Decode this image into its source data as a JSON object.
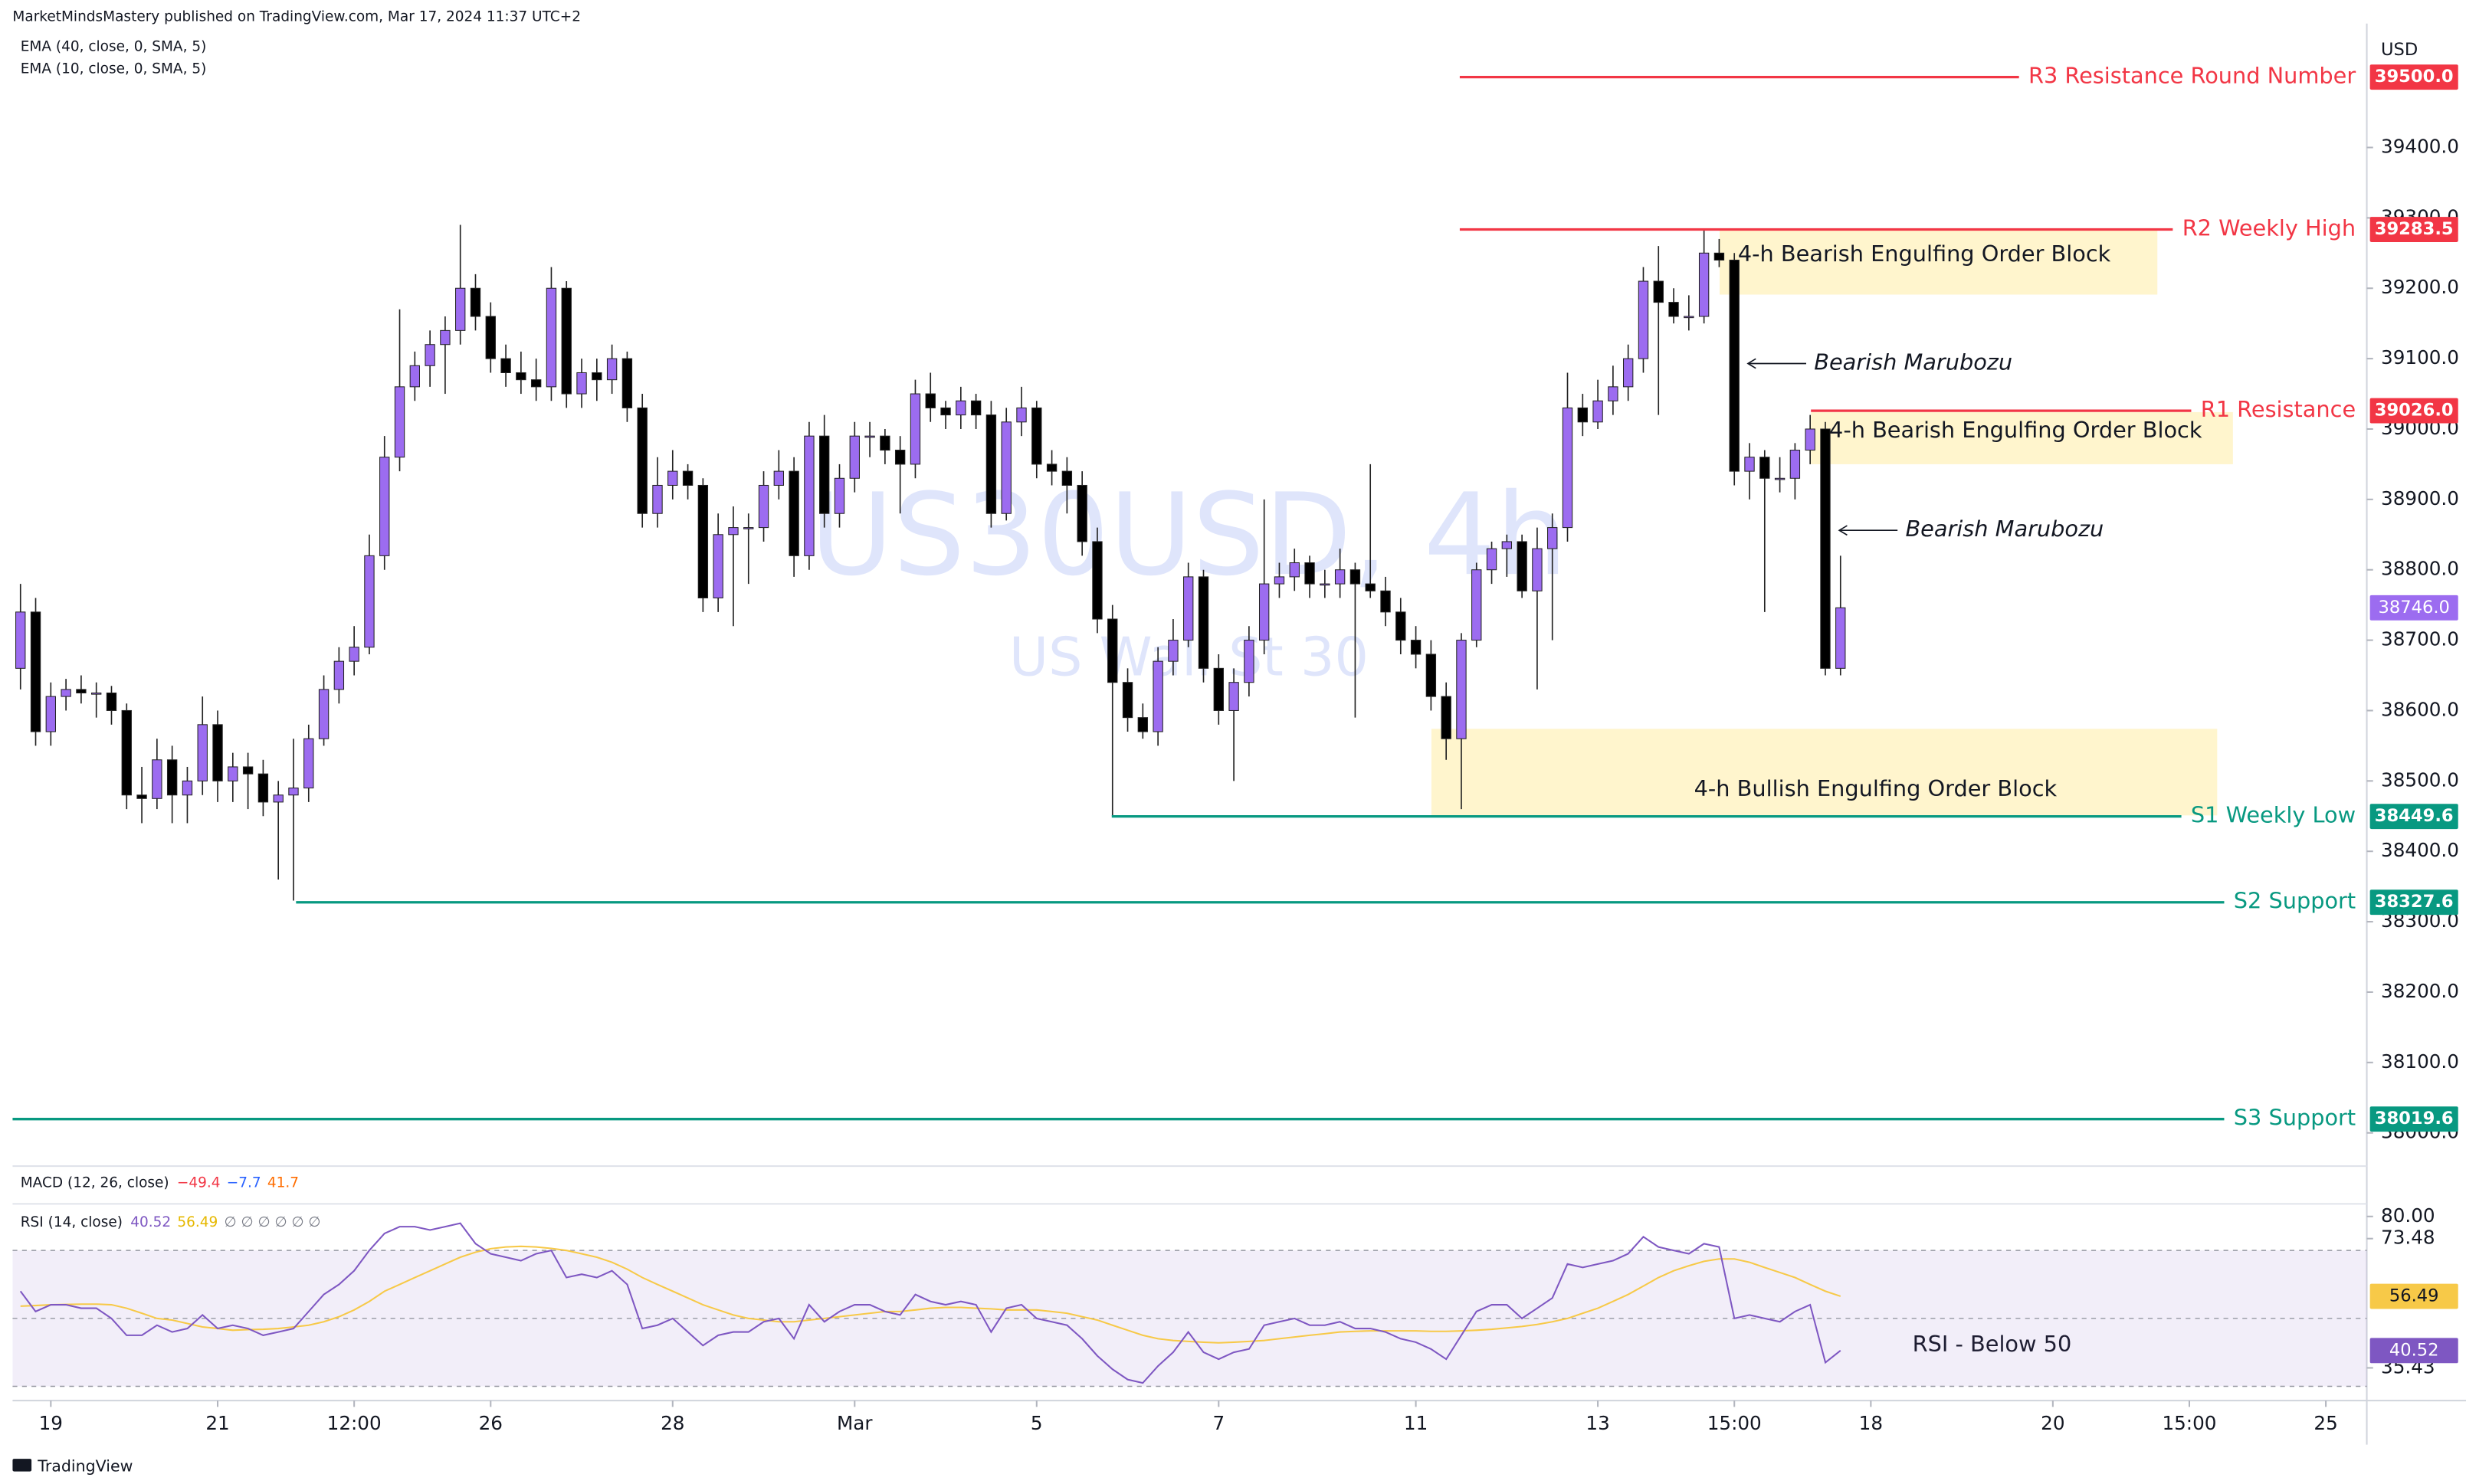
{
  "header": {
    "publisher": "MarketMindsMastery published on TradingView.com, Mar 17, 2024 11:37 UTC+2",
    "indicators": [
      "EMA (40, close, 0, SMA, 5)",
      "EMA (10, close, 0, SMA, 5)"
    ],
    "currency": "USD",
    "footer": "TradingView"
  },
  "macd": {
    "title": "MACD (12, 26, close)",
    "values": [
      {
        "label": "−49.4",
        "color": "#f23645"
      },
      {
        "label": "−7.7",
        "color": "#2962ff"
      },
      {
        "label": "41.7",
        "color": "#ff6d00"
      }
    ]
  },
  "chart_data": [
    {
      "type": "candlestick",
      "title": "US30USD, 4h",
      "subtitle": "US Wall St 30",
      "colors": {
        "up": "#9c6cf0",
        "down": "#000000"
      },
      "grid": false,
      "xlim": [
        -0.52,
        154.7
      ],
      "ylim": [
        37955,
        39576
      ],
      "xticks": [
        {
          "value": 2,
          "label": "19"
        },
        {
          "value": 13,
          "label": "21"
        },
        {
          "value": 22,
          "label": "12:00"
        },
        {
          "value": 31,
          "label": "26"
        },
        {
          "value": 43,
          "label": "28"
        },
        {
          "value": 55,
          "label": "Mar"
        },
        {
          "value": 67,
          "label": "5"
        },
        {
          "value": 79,
          "label": "7"
        },
        {
          "value": 92,
          "label": "11"
        },
        {
          "value": 104,
          "label": "13"
        },
        {
          "value": 113,
          "label": "15:00"
        },
        {
          "value": 122,
          "label": "18"
        },
        {
          "value": 134,
          "label": "20"
        },
        {
          "value": 143,
          "label": "15:00"
        },
        {
          "value": 152,
          "label": "25"
        }
      ],
      "yticks": [
        {
          "value": 38000,
          "label": "38000.0"
        },
        {
          "value": 38100,
          "label": "38100.0"
        },
        {
          "value": 38200,
          "label": "38200.0"
        },
        {
          "value": 38300,
          "label": "38300.0"
        },
        {
          "value": 38400,
          "label": "38400.0"
        },
        {
          "value": 38500,
          "label": "38500.0"
        },
        {
          "value": 38600,
          "label": "38600.0"
        },
        {
          "value": 38700,
          "label": "38700.0"
        },
        {
          "value": 38800,
          "label": "38800.0"
        },
        {
          "value": 38900,
          "label": "38900.0"
        },
        {
          "value": 39000,
          "label": "39000.0"
        },
        {
          "value": 39100,
          "label": "39100.0"
        },
        {
          "value": 39200,
          "label": "39200.0"
        },
        {
          "value": 39300,
          "label": "39300.0"
        },
        {
          "value": 39400,
          "label": "39400.0"
        }
      ],
      "ohlc": [
        [
          38660,
          38780,
          38630,
          38740
        ],
        [
          38740,
          38760,
          38550,
          38570
        ],
        [
          38570,
          38640,
          38550,
          38620
        ],
        [
          38620,
          38645,
          38600,
          38630
        ],
        [
          38630,
          38650,
          38610,
          38625
        ],
        [
          38625,
          38640,
          38590,
          38625
        ],
        [
          38625,
          38635,
          38580,
          38600
        ],
        [
          38600,
          38610,
          38460,
          38480
        ],
        [
          38480,
          38520,
          38440,
          38475
        ],
        [
          38475,
          38560,
          38460,
          38530
        ],
        [
          38530,
          38550,
          38440,
          38480
        ],
        [
          38480,
          38520,
          38440,
          38500
        ],
        [
          38500,
          38620,
          38480,
          38580
        ],
        [
          38580,
          38600,
          38470,
          38500
        ],
        [
          38500,
          38540,
          38470,
          38520
        ],
        [
          38520,
          38540,
          38460,
          38510
        ],
        [
          38510,
          38530,
          38450,
          38470
        ],
        [
          38470,
          38500,
          38360,
          38480
        ],
        [
          38480,
          38560,
          38330,
          38490
        ],
        [
          38490,
          38580,
          38470,
          38560
        ],
        [
          38560,
          38650,
          38550,
          38630
        ],
        [
          38630,
          38690,
          38610,
          38670
        ],
        [
          38670,
          38720,
          38650,
          38690
        ],
        [
          38690,
          38850,
          38680,
          38820
        ],
        [
          38820,
          38990,
          38800,
          38960
        ],
        [
          38960,
          39170,
          38940,
          39060
        ],
        [
          39060,
          39110,
          39040,
          39090
        ],
        [
          39090,
          39140,
          39060,
          39120
        ],
        [
          39120,
          39160,
          39050,
          39140
        ],
        [
          39140,
          39290,
          39120,
          39200
        ],
        [
          39200,
          39220,
          39140,
          39160
        ],
        [
          39160,
          39180,
          39080,
          39100
        ],
        [
          39100,
          39120,
          39060,
          39080
        ],
        [
          39080,
          39110,
          39050,
          39070
        ],
        [
          39070,
          39100,
          39040,
          39060
        ],
        [
          39060,
          39230,
          39040,
          39200
        ],
        [
          39200,
          39210,
          39030,
          39050
        ],
        [
          39050,
          39100,
          39030,
          39080
        ],
        [
          39080,
          39100,
          39040,
          39070
        ],
        [
          39070,
          39120,
          39050,
          39100
        ],
        [
          39100,
          39110,
          39010,
          39030
        ],
        [
          39030,
          39050,
          38860,
          38880
        ],
        [
          38880,
          38960,
          38860,
          38920
        ],
        [
          38920,
          38970,
          38900,
          38940
        ],
        [
          38940,
          38950,
          38900,
          38920
        ],
        [
          38920,
          38930,
          38740,
          38760
        ],
        [
          38760,
          38880,
          38740,
          38850
        ],
        [
          38850,
          38890,
          38720,
          38860
        ],
        [
          38860,
          38880,
          38780,
          38860
        ],
        [
          38860,
          38940,
          38840,
          38920
        ],
        [
          38920,
          38970,
          38900,
          38940
        ],
        [
          38940,
          38960,
          38790,
          38820
        ],
        [
          38820,
          39010,
          38800,
          38990
        ],
        [
          38990,
          39020,
          38860,
          38880
        ],
        [
          38880,
          38950,
          38860,
          38930
        ],
        [
          38930,
          39010,
          38910,
          38990
        ],
        [
          38990,
          39010,
          38960,
          38990
        ],
        [
          38990,
          39000,
          38950,
          38970
        ],
        [
          38970,
          38990,
          38880,
          38950
        ],
        [
          38950,
          39070,
          38930,
          39050
        ],
        [
          39050,
          39080,
          39010,
          39030
        ],
        [
          39030,
          39040,
          39000,
          39020
        ],
        [
          39020,
          39060,
          39000,
          39040
        ],
        [
          39040,
          39050,
          39000,
          39020
        ],
        [
          39020,
          39040,
          38860,
          38880
        ],
        [
          38880,
          39030,
          38870,
          39010
        ],
        [
          39010,
          39060,
          38990,
          39030
        ],
        [
          39030,
          39040,
          38930,
          38950
        ],
        [
          38950,
          38970,
          38920,
          38940
        ],
        [
          38940,
          38960,
          38880,
          38920
        ],
        [
          38920,
          38940,
          38820,
          38840
        ],
        [
          38840,
          38860,
          38710,
          38730
        ],
        [
          38730,
          38750,
          38450,
          38640
        ],
        [
          38640,
          38660,
          38570,
          38590
        ],
        [
          38590,
          38610,
          38560,
          38570
        ],
        [
          38570,
          38690,
          38550,
          38670
        ],
        [
          38670,
          38730,
          38650,
          38700
        ],
        [
          38700,
          38810,
          38690,
          38790
        ],
        [
          38790,
          38800,
          38640,
          38660
        ],
        [
          38660,
          38680,
          38580,
          38600
        ],
        [
          38600,
          38660,
          38500,
          38640
        ],
        [
          38640,
          38720,
          38620,
          38700
        ],
        [
          38700,
          38900,
          38680,
          38780
        ],
        [
          38780,
          38810,
          38760,
          38790
        ],
        [
          38790,
          38830,
          38770,
          38810
        ],
        [
          38810,
          38820,
          38760,
          38780
        ],
        [
          38780,
          38800,
          38760,
          38780
        ],
        [
          38780,
          38830,
          38760,
          38800
        ],
        [
          38800,
          38810,
          38590,
          38780
        ],
        [
          38780,
          38950,
          38760,
          38770
        ],
        [
          38770,
          38790,
          38720,
          38740
        ],
        [
          38740,
          38760,
          38680,
          38700
        ],
        [
          38700,
          38720,
          38660,
          38680
        ],
        [
          38680,
          38700,
          38600,
          38620
        ],
        [
          38620,
          38640,
          38530,
          38560
        ],
        [
          38560,
          38710,
          38460,
          38700
        ],
        [
          38700,
          38810,
          38690,
          38800
        ],
        [
          38800,
          38840,
          38780,
          38830
        ],
        [
          38830,
          38850,
          38790,
          38840
        ],
        [
          38840,
          38850,
          38760,
          38770
        ],
        [
          38770,
          38860,
          38630,
          38830
        ],
        [
          38830,
          38880,
          38700,
          38860
        ],
        [
          38860,
          39080,
          38840,
          39030
        ],
        [
          39030,
          39050,
          38990,
          39010
        ],
        [
          39010,
          39070,
          39000,
          39040
        ],
        [
          39040,
          39090,
          39020,
          39060
        ],
        [
          39060,
          39120,
          39040,
          39100
        ],
        [
          39100,
          39230,
          39080,
          39210
        ],
        [
          39210,
          39260,
          39020,
          39180
        ],
        [
          39180,
          39200,
          39150,
          39160
        ],
        [
          39160,
          39190,
          39140,
          39160
        ],
        [
          39160,
          39283,
          39150,
          39250
        ],
        [
          39250,
          39270,
          39230,
          39240
        ],
        [
          39240,
          39250,
          38920,
          38940
        ],
        [
          38940,
          38980,
          38900,
          38960
        ],
        [
          38960,
          38970,
          38740,
          38930
        ],
        [
          38930,
          38960,
          38910,
          38930
        ],
        [
          38930,
          38980,
          38900,
          38970
        ],
        [
          38970,
          39020,
          38950,
          39000
        ],
        [
          39000,
          39010,
          38650,
          38660
        ],
        [
          38660,
          38820,
          38650,
          38746
        ]
      ],
      "last_price_label": "38746.0",
      "levels": [
        {
          "name": "R3 Resistance Round Number",
          "value": 39500,
          "label": "39500.0",
          "color": "#f23645"
        },
        {
          "name": "R2 Weekly High",
          "value": 39283.5,
          "label": "39283.5",
          "color": "#f23645"
        },
        {
          "name": "R1 Resistance",
          "value": 39026,
          "label": "39026.0",
          "color": "#f23645"
        },
        {
          "name": "S1 Weekly Low",
          "value": 38449.6,
          "label": "38449.6",
          "color": "#089981"
        },
        {
          "name": "S2 Support",
          "value": 38327.6,
          "label": "38327.6",
          "color": "#089981"
        },
        {
          "name": "S3 Support",
          "value": 38019.6,
          "label": "38019.6",
          "color": "#089981"
        }
      ],
      "zones": [
        {
          "label": "4-h Bearish Engulfing Order Block",
          "top": 39283,
          "bottom": 39191
        },
        {
          "label": "4-h Bearish Engulfing Order Block",
          "top": 39024,
          "bottom": 38950
        },
        {
          "label": "4-h Bullish Engulfing Order Block",
          "top": 38574,
          "bottom": 38451
        }
      ],
      "annotations": [
        "Bearish Marubozu",
        "Bearish Marubozu"
      ]
    },
    {
      "type": "line",
      "title": "RSI (14, close)",
      "legend_extra": "∅ ∅ ∅ ∅ ∅ ∅",
      "annotation": "RSI - Below 50",
      "ylim": [
        25.8,
        83.7
      ],
      "bands": [
        70,
        50,
        30
      ],
      "band_color": "#7e57c2",
      "yticks": [
        {
          "value": 80,
          "label": "80.00"
        },
        {
          "value": 73.48,
          "label": "73.48"
        },
        {
          "value": 35.43,
          "label": "35.43"
        }
      ],
      "series": [
        {
          "color": "#7e57c2",
          "last_label": "40.52",
          "values": [
            58,
            52,
            54,
            54,
            53,
            53,
            50,
            45,
            45,
            48,
            46,
            47,
            51,
            47,
            48,
            47,
            45,
            46,
            47,
            52,
            57,
            60,
            64,
            70,
            75,
            77,
            77,
            76,
            77,
            78,
            72,
            69,
            68,
            67,
            69,
            70,
            62,
            63,
            62,
            64,
            60,
            47,
            48,
            50,
            46,
            42,
            45,
            46,
            46,
            49,
            50,
            44,
            54,
            49,
            52,
            54,
            54,
            52,
            51,
            57,
            55,
            54,
            55,
            54,
            46,
            53,
            54,
            50,
            49,
            48,
            44,
            39,
            35,
            32,
            31,
            36,
            40,
            46,
            40,
            38,
            40,
            41,
            48,
            49,
            50,
            48,
            48,
            49,
            47,
            47,
            46,
            44,
            43,
            41,
            38,
            45,
            52,
            54,
            54,
            50,
            53,
            56,
            66,
            65,
            66,
            67,
            69,
            74,
            71,
            70,
            69,
            72,
            71,
            50,
            51,
            50,
            49,
            52,
            54,
            37,
            40.52
          ]
        },
        {
          "color": "#f7c948",
          "last_label": "56.49",
          "values": [
            53.6,
            53.8,
            54,
            54.1,
            54.2,
            54.2,
            54,
            53,
            51.5,
            50,
            49.5,
            48.5,
            47.5,
            47,
            46.5,
            46.7,
            46.8,
            47,
            47.5,
            48,
            49,
            50.5,
            52.5,
            55,
            58,
            60,
            62,
            64,
            66,
            68,
            69.5,
            70.5,
            71,
            71.2,
            71,
            70.6,
            70,
            69,
            68,
            66.5,
            64.5,
            62,
            60,
            58,
            56,
            54,
            52.5,
            51,
            50,
            49.5,
            49,
            49,
            49.5,
            50,
            50.5,
            51,
            51.5,
            52,
            52,
            52.5,
            53,
            53.2,
            53.2,
            53,
            52.8,
            52.5,
            52.5,
            52.5,
            52,
            51.5,
            50.5,
            49.5,
            48,
            46.5,
            45,
            44,
            43.5,
            43.2,
            43,
            42.8,
            43,
            43.2,
            43.5,
            44,
            44.5,
            45,
            45.5,
            46,
            46.2,
            46.3,
            46.3,
            46.3,
            46.3,
            46.2,
            46.2,
            46.3,
            46.5,
            46.8,
            47.2,
            47.6,
            48.2,
            49,
            50,
            51.5,
            53,
            55,
            57,
            59.5,
            62,
            64,
            65.5,
            66.8,
            67.5,
            67.5,
            66.5,
            65,
            63.5,
            62,
            60,
            58,
            56.49
          ]
        }
      ]
    }
  ]
}
